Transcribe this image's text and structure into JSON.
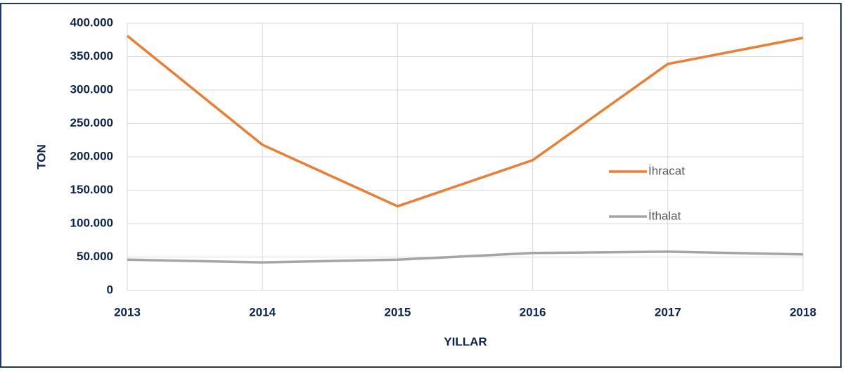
{
  "chart_data": {
    "type": "line",
    "categories": [
      "2013",
      "2014",
      "2015",
      "2016",
      "2017",
      "2018"
    ],
    "series": [
      {
        "name": "İhracat",
        "color": "#ed7d31",
        "values": [
          381000,
          218000,
          126000,
          195000,
          339000,
          378000
        ]
      },
      {
        "name": "İthalat",
        "color": "#a5a5a5",
        "values": [
          46000,
          42000,
          46000,
          56000,
          58000,
          54000
        ]
      }
    ],
    "ylim": [
      0,
      400000
    ],
    "yticks": [
      0,
      {
        "value": 50000,
        "label": "50.000"
      },
      {
        "value": 100000,
        "label": "100.000"
      },
      {
        "value": 150000,
        "label": "150.000"
      },
      {
        "value": 200000,
        "label": "200.000"
      },
      {
        "value": 250000,
        "label": "250.000"
      },
      {
        "value": 300000,
        "label": "300.000"
      },
      {
        "value": 350000,
        "label": "350.000"
      },
      {
        "value": 400000,
        "label": "400.000"
      }
    ],
    "ylabel": "TON",
    "xlabel": "YILLAR",
    "grid": true,
    "legend": "right"
  }
}
